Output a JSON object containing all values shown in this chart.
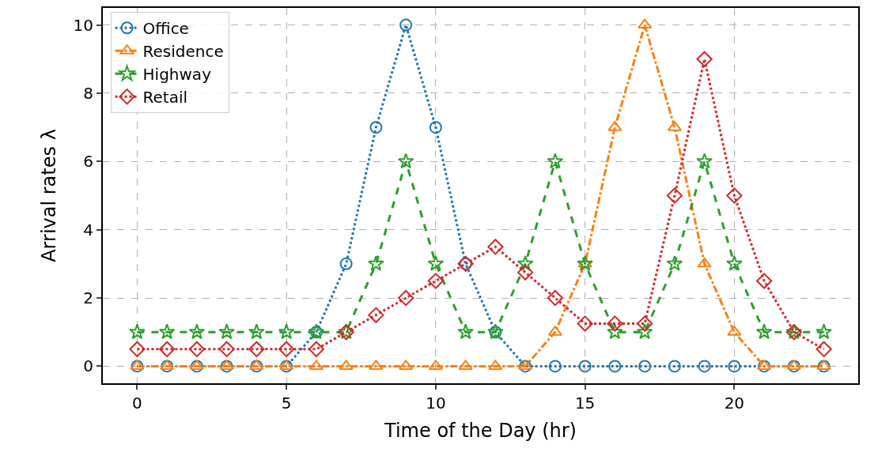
{
  "chart_data": {
    "type": "line",
    "xlabel": "Time of the Day (hr)",
    "ylabel": "Arrival rates λ",
    "x": [
      0,
      1,
      2,
      3,
      4,
      5,
      6,
      7,
      8,
      9,
      10,
      11,
      12,
      13,
      14,
      15,
      16,
      17,
      18,
      19,
      20,
      21,
      22,
      23
    ],
    "series": [
      {
        "name": "Office",
        "color": "#1f77b4",
        "marker": "circle",
        "line_style": "dotted",
        "values": [
          0,
          0,
          0,
          0,
          0,
          0,
          1,
          3,
          7,
          10,
          7,
          3,
          1,
          0,
          0,
          0,
          0,
          0,
          0,
          0,
          0,
          0,
          0,
          0
        ]
      },
      {
        "name": "Residence",
        "color": "#ff7f0e",
        "marker": "triangle",
        "line_style": "dashdot",
        "values": [
          0,
          0,
          0,
          0,
          0,
          0,
          0,
          0,
          0,
          0,
          0,
          0,
          0,
          0,
          1,
          3,
          7,
          10,
          7,
          3,
          1,
          0,
          0,
          0
        ]
      },
      {
        "name": "Highway",
        "color": "#2ca02c",
        "marker": "star",
        "line_style": "dashed",
        "values": [
          1,
          1,
          1,
          1,
          1,
          1,
          1,
          1,
          3,
          6,
          3,
          1,
          1,
          3,
          6,
          3,
          1,
          1,
          3,
          6,
          3,
          1,
          1,
          1
        ]
      },
      {
        "name": "Retail",
        "color": "#d62728",
        "marker": "diamond",
        "line_style": "dotted",
        "values": [
          0.5,
          0.5,
          0.5,
          0.5,
          0.5,
          0.5,
          0.5,
          1,
          1.5,
          2,
          2.5,
          3,
          3.5,
          2.75,
          2,
          1.25,
          1.25,
          1.25,
          5,
          9,
          5,
          2.5,
          1,
          0.5
        ]
      }
    ],
    "xlim": [
      -1.15,
      24.15
    ],
    "xticks": [
      0,
      5,
      10,
      15,
      20
    ],
    "ylim": [
      -0.5,
      10.5
    ],
    "yticks": [
      0,
      2,
      4,
      6,
      8,
      10
    ],
    "grid": true,
    "legend": "top left"
  }
}
